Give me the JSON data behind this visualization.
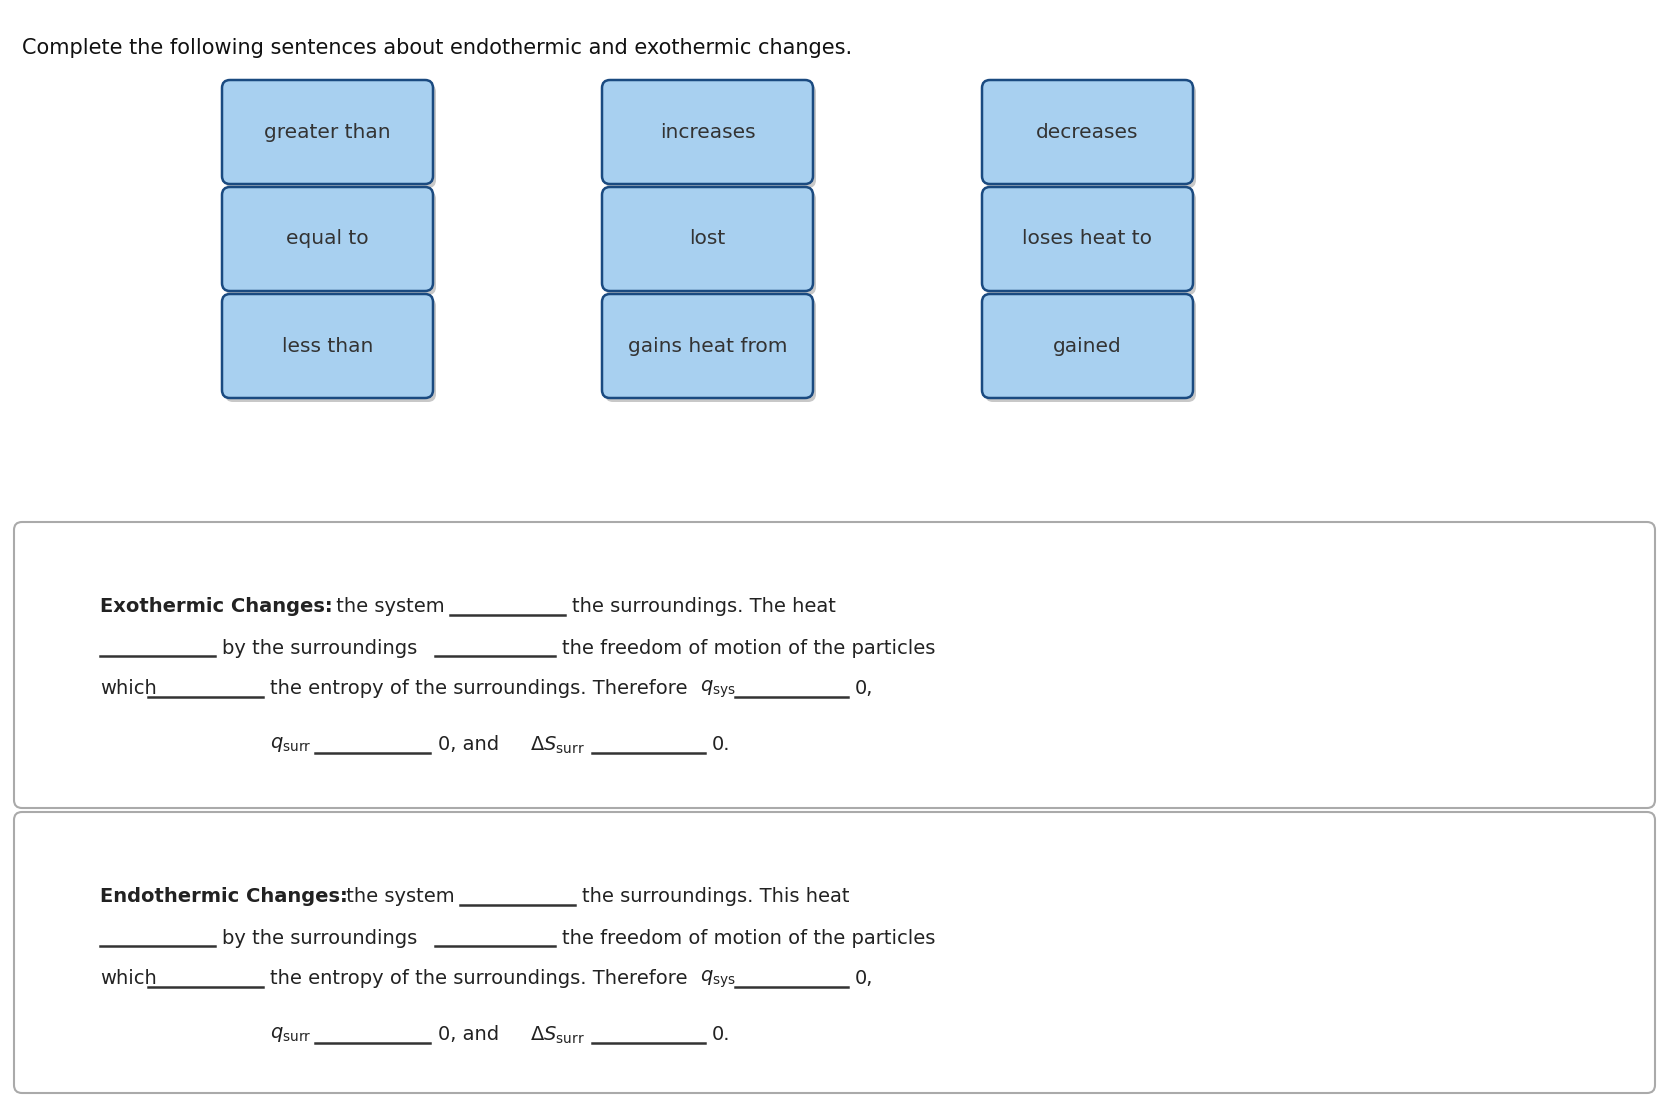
{
  "title": "Complete the following sentences about endothermic and exothermic changes.",
  "title_fontsize": 15,
  "bg_color": "#ffffff",
  "button_bg": "#a8d0f0",
  "button_border": "#1a4a80",
  "button_text_color": "#333333",
  "button_fontsize": 14.5,
  "buttons": [
    [
      "greater than",
      "increases",
      "decreases"
    ],
    [
      "equal to",
      "lost",
      "loses heat to"
    ],
    [
      "less than",
      "gains heat from",
      "gained"
    ]
  ],
  "box_bg": "#ffffff",
  "box_border": "#aaaaaa",
  "text_fontsize": 14,
  "line_color": "#333333",
  "line_width": 1.8,
  "text_color": "#222222"
}
